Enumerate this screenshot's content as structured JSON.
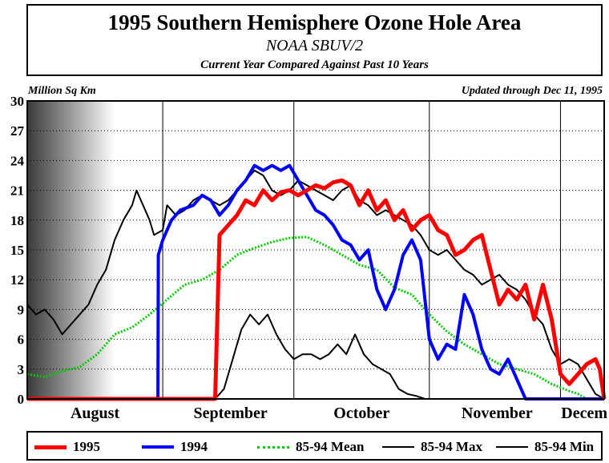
{
  "header": {
    "title": "1995 Southern Hemisphere Ozone Hole Area",
    "subtitle": "NOAA SBUV/2",
    "subtitle2": "Current Year Compared Against Past 10 Years"
  },
  "unit_label": "Million Sq Km",
  "updated_label": "Updated through Dec 11, 1995",
  "colors": {
    "s1995": "#ff0000",
    "s1994": "#0000ff",
    "mean": "#00cc00",
    "max": "#000000",
    "min": "#000000"
  },
  "chart_data": {
    "type": "line",
    "ylabel": "Million Sq Km",
    "ylim": [
      0,
      30
    ],
    "yticks": [
      0,
      3,
      6,
      9,
      12,
      15,
      18,
      21,
      24,
      27,
      30
    ],
    "xlim": [
      0,
      132
    ],
    "month_labels": [
      "August",
      "September",
      "October",
      "November",
      "Decem"
    ],
    "month_label_days": [
      0,
      31,
      61,
      92,
      122
    ],
    "month_boundaries": [
      31,
      61,
      92,
      122
    ],
    "grid": true,
    "legend_position": "bottom",
    "series": [
      {
        "name": "1995",
        "key": "s1995",
        "style": "thick",
        "x": [
          0,
          10,
          20,
          30,
          40,
          43,
          44,
          46,
          48,
          50,
          52,
          54,
          56,
          58,
          60,
          62,
          64,
          66,
          68,
          70,
          72,
          74,
          76,
          78,
          80,
          82,
          84,
          86,
          88,
          90,
          92,
          94,
          96,
          98,
          100,
          102,
          104,
          106,
          108,
          110,
          112,
          114,
          116,
          118,
          120,
          122,
          124,
          126,
          128,
          130,
          131,
          132
        ],
        "y": [
          0,
          0,
          0,
          0,
          0,
          0,
          16.5,
          17.5,
          18.5,
          20,
          19.5,
          21,
          20,
          20.8,
          21,
          20.5,
          21,
          21.5,
          21.2,
          21.8,
          22,
          21.5,
          19.5,
          21,
          19,
          20,
          18,
          19,
          17,
          18,
          18.5,
          17,
          16.5,
          14.5,
          15,
          16,
          16.5,
          13,
          9.5,
          11,
          10,
          11.5,
          8,
          11.5,
          8,
          2.5,
          1.5,
          2.5,
          3.5,
          4,
          3,
          0
        ]
      },
      {
        "name": "1994",
        "key": "s1994",
        "style": "thick",
        "x": [
          0,
          10,
          20,
          29.9,
          30,
          31,
          33,
          35,
          38,
          40,
          42,
          44,
          46,
          48,
          50,
          52,
          54,
          56,
          58,
          60,
          62,
          64,
          66,
          68,
          70,
          72,
          74,
          76,
          78,
          80,
          82,
          84,
          86,
          88,
          90,
          92,
          94,
          96,
          98,
          100,
          102,
          104,
          106,
          108,
          110,
          112,
          114,
          116,
          118,
          120,
          122,
          124,
          126,
          128,
          130,
          132
        ],
        "y": [
          0,
          0,
          0,
          0,
          14.5,
          16,
          18,
          19,
          19.5,
          20.5,
          20,
          18.5,
          19.5,
          21,
          22,
          23.5,
          23,
          23.5,
          23,
          23.5,
          22,
          20.5,
          19,
          18.5,
          17.5,
          16,
          15.5,
          14,
          15,
          11,
          9,
          11,
          14.5,
          16,
          14,
          6,
          4,
          5.5,
          5,
          10.5,
          8.5,
          5,
          3,
          2.5,
          4,
          2,
          0,
          0,
          0,
          0,
          0,
          0,
          0,
          0,
          0,
          0
        ]
      },
      {
        "name": "85-94 Mean",
        "key": "mean",
        "style": "dotted",
        "x": [
          0,
          4,
          8,
          12,
          16,
          20,
          24,
          28,
          32,
          36,
          40,
          44,
          48,
          52,
          56,
          60,
          64,
          68,
          72,
          76,
          80,
          84,
          88,
          92,
          96,
          100,
          104,
          108,
          112,
          116,
          120,
          124,
          126,
          128,
          132
        ],
        "y": [
          2.5,
          2.2,
          2.8,
          3.2,
          4.5,
          6.5,
          7.2,
          8.5,
          10,
          11.5,
          12,
          13,
          14.5,
          15.2,
          15.8,
          16.2,
          16.3,
          15.5,
          14.5,
          13.5,
          13,
          11.2,
          10.5,
          8.5,
          6.8,
          5.5,
          4.5,
          3.5,
          3,
          2.5,
          1.5,
          0.8,
          0.5,
          0,
          0
        ]
      },
      {
        "name": "85-94 Max",
        "key": "max",
        "style": "thin",
        "x": [
          0,
          2,
          4,
          6,
          8,
          10,
          12,
          14,
          16,
          18,
          20,
          22,
          24,
          25,
          26,
          28,
          29,
          31,
          32,
          34,
          36,
          38,
          40,
          42,
          44,
          46,
          48,
          50,
          52,
          54,
          56,
          58,
          60,
          62,
          64,
          66,
          68,
          70,
          72,
          74,
          76,
          78,
          80,
          82,
          84,
          86,
          88,
          90,
          92,
          94,
          96,
          98,
          100,
          102,
          104,
          106,
          108,
          110,
          112,
          114,
          116,
          118,
          120,
          122,
          124,
          126,
          128,
          130,
          132
        ],
        "y": [
          9.5,
          8.5,
          9,
          8,
          6.5,
          7.5,
          8.5,
          9.5,
          11.5,
          13,
          16,
          18,
          19.5,
          21,
          20,
          18,
          16.5,
          17,
          19.5,
          18.5,
          19,
          20,
          20.5,
          20,
          19.5,
          20,
          21,
          22,
          23,
          22.5,
          21,
          20.5,
          21,
          22,
          21.5,
          21,
          20.5,
          20,
          21,
          21.5,
          20,
          19.5,
          18.5,
          19,
          18.5,
          18,
          17.5,
          16.5,
          15,
          14.5,
          15,
          14,
          13,
          12.5,
          11.5,
          12,
          12.5,
          11.5,
          11,
          10,
          8.5,
          7.5,
          5,
          3.5,
          4,
          3.5,
          2,
          0.5,
          0
        ]
      },
      {
        "name": "85-94 Min",
        "key": "min",
        "style": "thin",
        "x": [
          0,
          10,
          20,
          30,
          40,
          43,
          45,
          47,
          49,
          51,
          53,
          55,
          57,
          59,
          61,
          63,
          65,
          67,
          69,
          71,
          73,
          75,
          77,
          79,
          81,
          83,
          85,
          87,
          89,
          91,
          93,
          132
        ],
        "y": [
          0,
          0,
          0,
          0,
          0,
          0,
          1,
          4,
          7,
          8.5,
          7.5,
          8.5,
          6.5,
          5,
          4,
          4.5,
          4.5,
          4,
          4.5,
          5.5,
          4.5,
          6.5,
          4.5,
          3.5,
          3,
          2.5,
          1,
          0.5,
          0.3,
          0,
          0,
          0
        ]
      }
    ]
  },
  "legend": [
    {
      "label": "1995",
      "key": "s1995",
      "style": "thick"
    },
    {
      "label": "1994",
      "key": "s1994",
      "style": "thick"
    },
    {
      "label": "85-94 Mean",
      "key": "mean",
      "style": "dotted"
    },
    {
      "label": "85-94 Max",
      "key": "max",
      "style": "thin"
    },
    {
      "label": "85-94 Min",
      "key": "min",
      "style": "thin"
    }
  ]
}
